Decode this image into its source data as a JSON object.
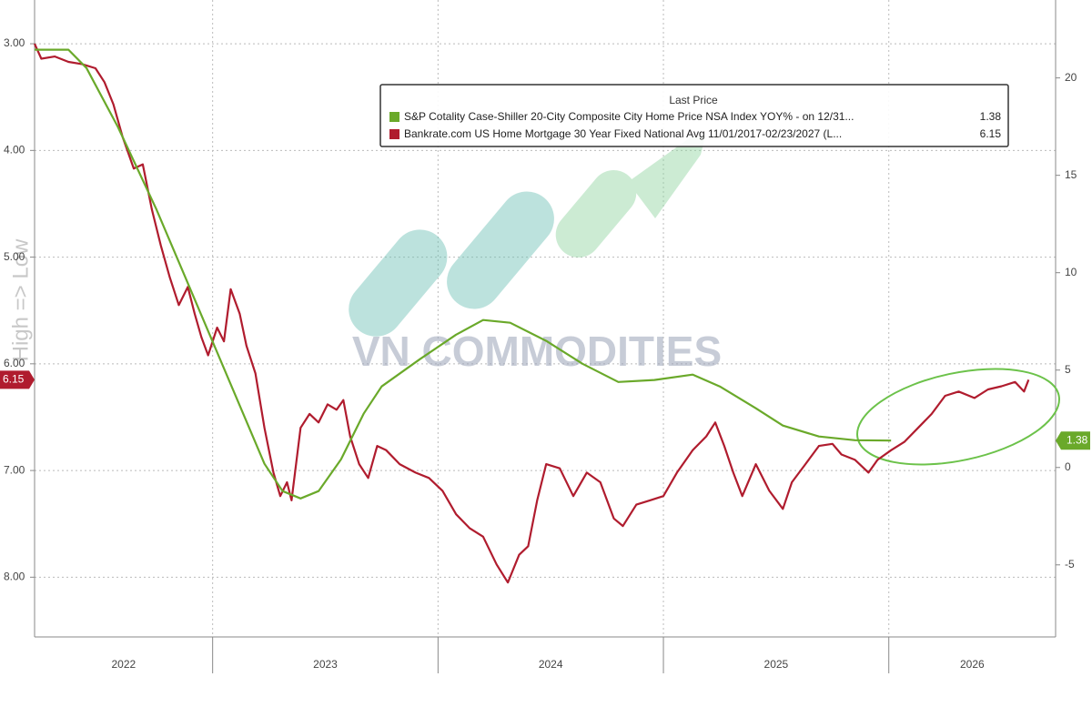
{
  "chart_data": {
    "type": "line",
    "ylabel": "High => Low",
    "legend_title": "Last Price",
    "watermark": "VN COMMODITIES",
    "xlim": [
      2022.21,
      2026.74
    ],
    "year_labels": [
      2022,
      2023,
      2024,
      2025,
      2026
    ],
    "ylim": [
      2.59,
      8.56
    ],
    "y_inverted": true,
    "yticks": [
      {
        "value": 3,
        "label": "3.00"
      },
      {
        "value": 4,
        "label": "4.00"
      },
      {
        "value": 5,
        "label": "5.00"
      },
      {
        "value": 6,
        "label": "6.00"
      },
      {
        "value": 7,
        "label": "7.00"
      },
      {
        "value": 8,
        "label": "8.00"
      }
    ],
    "y2lim": [
      -8.7,
      24.0
    ],
    "y2ticks": [
      20,
      15,
      10,
      5,
      0,
      -5
    ],
    "grid": true,
    "series": [
      {
        "name": "S&P Cotality Case-Shiller 20-City Composite City Home Price NSA Index YOY% -   on 12/31...",
        "color": "#6aa92a",
        "axis": "y2",
        "x": [
          2022.21,
          2022.36,
          2022.44,
          2022.58,
          2022.75,
          2022.87,
          2022.99,
          2023.11,
          2023.23,
          2023.31,
          2023.39,
          2023.47,
          2023.57,
          2023.67,
          2023.75,
          2023.92,
          2024.08,
          2024.2,
          2024.32,
          2024.48,
          2024.64,
          2024.8,
          2024.96,
          2025.13,
          2025.25,
          2025.41,
          2025.53,
          2025.69,
          2025.85,
          2026.01
        ],
        "values": [
          21.45,
          21.45,
          20.51,
          17.48,
          13.27,
          10.0,
          6.73,
          3.46,
          0.19,
          -1.21,
          -1.59,
          -1.21,
          0.42,
          2.76,
          4.16,
          5.56,
          6.82,
          7.57,
          7.43,
          6.5,
          5.33,
          4.39,
          4.49,
          4.77,
          4.16,
          3.04,
          2.15,
          1.59,
          1.4,
          1.38
        ]
      },
      {
        "name": "Bankrate.com US Home Mortgage 30 Year Fixed National Avg 11/01/2017-02/23/2027     (L...",
        "color": "#b01c2e",
        "axis": "y",
        "x": [
          2022.21,
          2022.24,
          2022.3,
          2022.36,
          2022.42,
          2022.48,
          2022.52,
          2022.56,
          2022.6,
          2022.65,
          2022.69,
          2022.73,
          2022.77,
          2022.81,
          2022.85,
          2022.89,
          2022.92,
          2022.95,
          2022.98,
          2023.02,
          2023.05,
          2023.08,
          2023.12,
          2023.15,
          2023.19,
          2023.23,
          2023.27,
          2023.3,
          2023.33,
          2023.35,
          2023.39,
          2023.43,
          2023.47,
          2023.51,
          2023.55,
          2023.58,
          2023.61,
          2023.65,
          2023.69,
          2023.73,
          2023.77,
          2023.83,
          2023.9,
          2023.96,
          2024.02,
          2024.08,
          2024.14,
          2024.2,
          2024.26,
          2024.31,
          2024.36,
          2024.4,
          2024.44,
          2024.48,
          2024.54,
          2024.6,
          2024.66,
          2024.72,
          2024.78,
          2024.82,
          2024.88,
          2024.94,
          2025.0,
          2025.06,
          2025.13,
          2025.19,
          2025.23,
          2025.27,
          2025.31,
          2025.35,
          2025.41,
          2025.47,
          2025.53,
          2025.57,
          2025.63,
          2025.69,
          2025.75,
          2025.79,
          2025.85,
          2025.91,
          2025.95,
          2026.01,
          2026.07,
          2026.13,
          2026.19,
          2026.25,
          2026.31,
          2026.38,
          2026.44,
          2026.5,
          2026.56,
          2026.6,
          2026.62
        ],
        "values": [
          3.0,
          3.14,
          3.12,
          3.17,
          3.19,
          3.23,
          3.36,
          3.57,
          3.87,
          4.17,
          4.13,
          4.55,
          4.89,
          5.19,
          5.45,
          5.28,
          5.53,
          5.75,
          5.92,
          5.66,
          5.79,
          5.3,
          5.53,
          5.83,
          6.09,
          6.6,
          7.02,
          7.24,
          7.11,
          7.28,
          6.6,
          6.47,
          6.55,
          6.38,
          6.43,
          6.34,
          6.68,
          6.94,
          7.07,
          6.77,
          6.81,
          6.94,
          7.02,
          7.07,
          7.19,
          7.41,
          7.54,
          7.62,
          7.88,
          8.05,
          7.79,
          7.71,
          7.28,
          6.94,
          6.98,
          7.24,
          7.02,
          7.11,
          7.45,
          7.52,
          7.32,
          7.28,
          7.24,
          7.02,
          6.81,
          6.68,
          6.55,
          6.77,
          7.02,
          7.24,
          6.94,
          7.19,
          7.36,
          7.11,
          6.94,
          6.77,
          6.75,
          6.85,
          6.9,
          7.02,
          6.9,
          6.81,
          6.73,
          6.6,
          6.47,
          6.3,
          6.26,
          6.32,
          6.24,
          6.21,
          6.17,
          6.26,
          6.15
        ]
      }
    ]
  }
}
